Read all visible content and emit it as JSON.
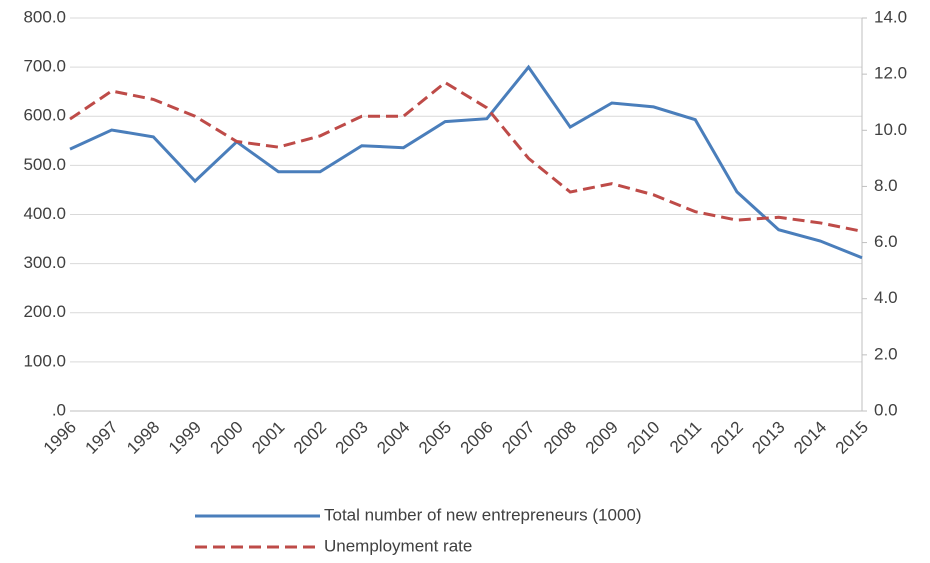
{
  "chart_data": {
    "type": "line",
    "categories": [
      "1996",
      "1997",
      "1998",
      "1999",
      "2000",
      "2001",
      "2002",
      "2003",
      "2004",
      "2005",
      "2006",
      "2007",
      "2008",
      "2009",
      "2010",
      "2011",
      "2012",
      "2013",
      "2014",
      "2015"
    ],
    "series": [
      {
        "name": "Total number of new entrepreneurs (1000)",
        "color": "#4a7ebb",
        "dash": false,
        "values": [
          533,
          572,
          558,
          468,
          548,
          487,
          487,
          540,
          536,
          589,
          595,
          700,
          578,
          627,
          619,
          593,
          446,
          369,
          346,
          312
        ]
      },
      {
        "name": "Unemployment rate",
        "color": "#be4b48",
        "dash": true,
        "axis": "y2",
        "values": [
          10.4,
          11.4,
          11.1,
          10.5,
          9.6,
          9.4,
          9.8,
          10.5,
          10.5,
          11.7,
          10.8,
          9.0,
          7.8,
          8.1,
          7.7,
          7.1,
          6.8,
          6.9,
          6.7,
          6.4
        ]
      }
    ],
    "ylim": [
      0,
      800
    ],
    "yticks": [
      {
        "value": 0,
        "label": ".0"
      },
      {
        "value": 100,
        "label": "100.0"
      },
      {
        "value": 200,
        "label": "200.0"
      },
      {
        "value": 300,
        "label": "300.0"
      },
      {
        "value": 400,
        "label": "400.0"
      },
      {
        "value": 500,
        "label": "500.0"
      },
      {
        "value": 600,
        "label": "600.0"
      },
      {
        "value": 700,
        "label": "700.0"
      },
      {
        "value": 800,
        "label": "800.0"
      }
    ],
    "y2lim": [
      0,
      14
    ],
    "y2ticks": [
      {
        "value": 0,
        "label": "0.0"
      },
      {
        "value": 2,
        "label": "2.0"
      },
      {
        "value": 4,
        "label": "4.0"
      },
      {
        "value": 6,
        "label": "6.0"
      },
      {
        "value": 8,
        "label": "8.0"
      },
      {
        "value": 10,
        "label": "10.0"
      },
      {
        "value": 12,
        "label": "12.0"
      },
      {
        "value": 14,
        "label": "14.0"
      }
    ],
    "grid": true
  }
}
